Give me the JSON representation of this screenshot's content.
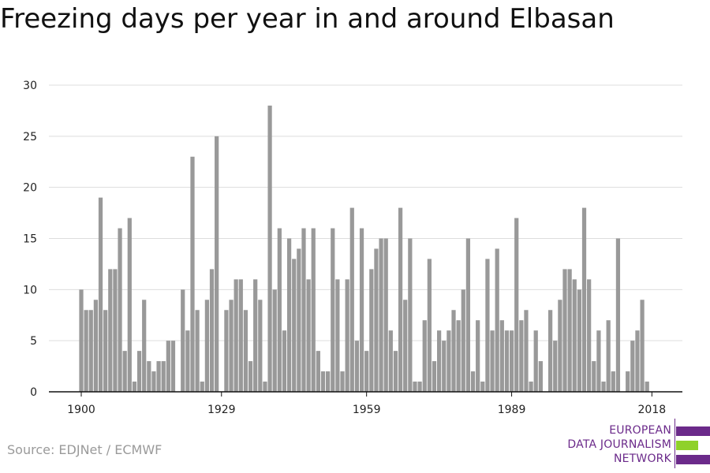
{
  "title": "Freezing days per year in and around Elbasan",
  "source": "Source: EDJNet / ECMWF",
  "logo": {
    "lines": [
      "EUROPEAN",
      "DATA JOURNALISM",
      "NETWORK"
    ],
    "colors": {
      "purple": "#6b2a8a",
      "green": "#8fd12a"
    }
  },
  "colors": {
    "bar": "#999999",
    "grid": "#dddddd",
    "axis": "#111111"
  },
  "chart_data": {
    "type": "bar",
    "x_start": 1900,
    "x_end": 2018,
    "x_ticks": [
      1900,
      1929,
      1959,
      1989,
      2018
    ],
    "y_ticks": [
      0,
      5,
      10,
      15,
      20,
      25,
      30
    ],
    "ylim": [
      0,
      30
    ],
    "grid": true,
    "values": [
      10,
      8,
      8,
      9,
      19,
      8,
      12,
      12,
      16,
      4,
      17,
      1,
      4,
      9,
      3,
      2,
      3,
      3,
      5,
      5,
      0,
      10,
      6,
      23,
      8,
      1,
      9,
      12,
      25,
      0,
      8,
      9,
      11,
      11,
      8,
      3,
      11,
      9,
      1,
      28,
      10,
      16,
      6,
      15,
      13,
      14,
      16,
      11,
      16,
      4,
      2,
      2,
      16,
      11,
      2,
      11,
      18,
      5,
      16,
      4,
      12,
      14,
      15,
      15,
      6,
      4,
      18,
      9,
      15,
      1,
      1,
      7,
      13,
      3,
      6,
      5,
      6,
      8,
      7,
      10,
      15,
      2,
      7,
      1,
      13,
      6,
      14,
      7,
      6,
      6,
      17,
      7,
      8,
      1,
      6,
      3,
      0,
      8,
      5,
      9,
      12,
      12,
      11,
      10,
      18,
      11,
      3,
      6,
      1,
      7,
      2,
      15,
      0,
      2,
      5,
      6,
      9,
      1,
      0
    ]
  }
}
